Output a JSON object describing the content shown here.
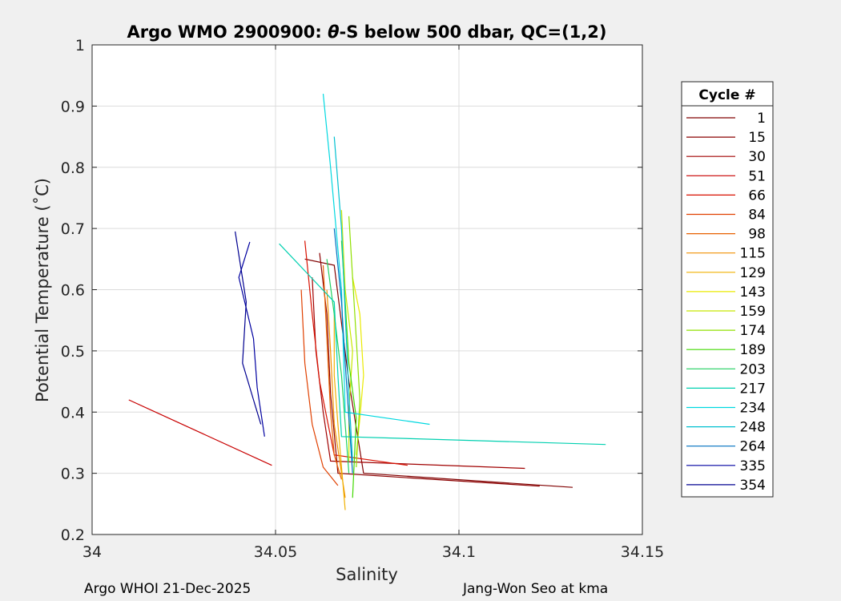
{
  "chart_data": {
    "type": "line",
    "title_prefix": "Argo WMO 2900900: ",
    "title_theta": "θ",
    "title_suffix": "-S below 500 dbar,  QC=(1,2)",
    "xlabel": "Salinity",
    "ylabel": "Potential Temperature (˚C)",
    "xlim": [
      34,
      34.15
    ],
    "ylim": [
      0.2,
      1.0
    ],
    "xticks": [
      34,
      34.05,
      34.1,
      34.15
    ],
    "xtick_labels": [
      "34",
      "34.05",
      "34.1",
      "34.15"
    ],
    "yticks": [
      0.2,
      0.3,
      0.4,
      0.5,
      0.6,
      0.7,
      0.8,
      0.9,
      1.0
    ],
    "ytick_labels": [
      "0.2",
      "0.3",
      "0.4",
      "0.5",
      "0.6",
      "0.7",
      "0.8",
      "0.9",
      "1"
    ],
    "grid": true,
    "legend_title": "Cycle #",
    "legend_position": "right-outside",
    "series": [
      {
        "name": "1",
        "color": "#800000",
        "x": [
          34.058,
          34.066,
          34.07,
          34.074,
          34.131
        ],
        "y": [
          0.65,
          0.64,
          0.45,
          0.3,
          0.277
        ]
      },
      {
        "name": "15",
        "color": "#8b0000",
        "x": [
          34.062,
          34.064,
          34.065,
          34.067,
          34.122
        ],
        "y": [
          0.66,
          0.56,
          0.43,
          0.3,
          0.279
        ]
      },
      {
        "name": "30",
        "color": "#a00000",
        "x": [
          34.06,
          34.061,
          34.063,
          34.065,
          34.118
        ],
        "y": [
          0.62,
          0.5,
          0.4,
          0.32,
          0.308
        ]
      },
      {
        "name": "51",
        "color": "#c80000",
        "x": [
          34.01,
          34.049
        ],
        "y": [
          0.42,
          0.313
        ]
      },
      {
        "name": "66",
        "color": "#d81000",
        "x": [
          34.058,
          34.06,
          34.062,
          34.066,
          34.086
        ],
        "y": [
          0.68,
          0.56,
          0.45,
          0.33,
          0.313
        ]
      },
      {
        "name": "84",
        "color": "#e04000",
        "x": [
          34.057,
          34.058,
          34.06,
          34.063,
          34.067
        ],
        "y": [
          0.6,
          0.48,
          0.38,
          0.31,
          0.28
        ]
      },
      {
        "name": "98",
        "color": "#e86000",
        "x": [
          34.063,
          34.064,
          34.065,
          34.066,
          34.068
        ],
        "y": [
          0.64,
          0.52,
          0.4,
          0.33,
          0.29
        ]
      },
      {
        "name": "115",
        "color": "#f09000",
        "x": [
          34.064,
          34.065,
          34.066,
          34.068,
          34.069
        ],
        "y": [
          0.6,
          0.5,
          0.38,
          0.3,
          0.26
        ]
      },
      {
        "name": "129",
        "color": "#f0b000",
        "x": [
          34.066,
          34.066,
          34.067,
          34.068,
          34.069
        ],
        "y": [
          0.56,
          0.46,
          0.38,
          0.31,
          0.24
        ]
      },
      {
        "name": "143",
        "color": "#eaea00",
        "x": [
          34.071,
          34.073,
          34.074,
          34.073,
          34.072
        ],
        "y": [
          0.62,
          0.56,
          0.46,
          0.39,
          0.33
        ]
      },
      {
        "name": "159",
        "color": "#c8e800",
        "x": [
          34.068,
          34.069,
          34.071,
          34.07,
          34.07
        ],
        "y": [
          0.73,
          0.6,
          0.5,
          0.4,
          0.32
        ]
      },
      {
        "name": "174",
        "color": "#90e000",
        "x": [
          34.07,
          34.071,
          34.072,
          34.073,
          34.072
        ],
        "y": [
          0.72,
          0.62,
          0.52,
          0.42,
          0.31
        ]
      },
      {
        "name": "189",
        "color": "#40d800",
        "x": [
          34.068,
          34.069,
          34.07,
          34.072,
          34.071
        ],
        "y": [
          0.68,
          0.58,
          0.48,
          0.39,
          0.26
        ]
      },
      {
        "name": "203",
        "color": "#20d060",
        "x": [
          34.064,
          34.066,
          34.068,
          34.069,
          34.07
        ],
        "y": [
          0.65,
          0.56,
          0.46,
          0.38,
          0.3
        ]
      },
      {
        "name": "217",
        "color": "#00d0b0",
        "x": [
          34.051,
          34.066,
          34.067,
          34.068,
          34.14
        ],
        "y": [
          0.675,
          0.58,
          0.46,
          0.36,
          0.347
        ]
      },
      {
        "name": "234",
        "color": "#00d8e0",
        "x": [
          34.063,
          34.065,
          34.068,
          34.069,
          34.092
        ],
        "y": [
          0.92,
          0.8,
          0.6,
          0.4,
          0.38
        ]
      },
      {
        "name": "248",
        "color": "#00c0d0",
        "x": [
          34.066,
          34.068,
          34.069,
          34.07,
          34.071
        ],
        "y": [
          0.85,
          0.7,
          0.56,
          0.43,
          0.32
        ]
      },
      {
        "name": "264",
        "color": "#0070c0",
        "x": [
          34.066,
          34.068,
          34.069,
          34.07,
          34.071
        ],
        "y": [
          0.7,
          0.58,
          0.48,
          0.39,
          0.3
        ]
      },
      {
        "name": "335",
        "color": "#0000a0",
        "x": [
          34.043,
          34.04,
          34.044,
          34.045,
          34.047
        ],
        "y": [
          0.678,
          0.62,
          0.52,
          0.44,
          0.36
        ]
      },
      {
        "name": "354",
        "color": "#000090",
        "x": [
          34.039,
          34.042,
          34.041,
          34.044,
          34.046
        ],
        "y": [
          0.695,
          0.58,
          0.48,
          0.42,
          0.38
        ]
      }
    ]
  },
  "footer": {
    "left": "Argo WHOI 21-Dec-2025",
    "right": "Jang-Won Seo at kma"
  }
}
